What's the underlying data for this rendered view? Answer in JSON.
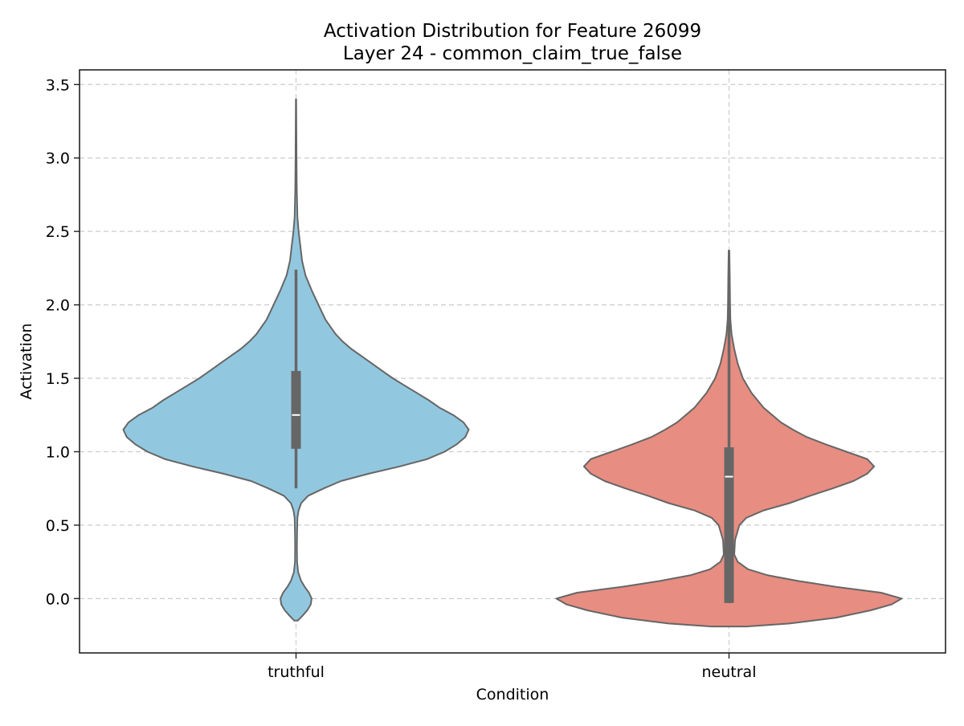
{
  "chart_data": {
    "type": "violin",
    "title": "Activation Distribution for Feature 26099",
    "subtitle": "Layer 24 - common_claim_true_false",
    "xlabel": "Condition",
    "ylabel": "Activation",
    "categories": [
      "truthful",
      "neutral"
    ],
    "ylim": [
      -0.37,
      3.6
    ],
    "yticks": [
      0.0,
      0.5,
      1.0,
      1.5,
      2.0,
      2.5,
      3.0,
      3.5
    ],
    "ytick_labels": [
      "0.0",
      "0.5",
      "1.0",
      "1.5",
      "2.0",
      "2.5",
      "3.0",
      "3.5"
    ],
    "grid": true,
    "legend": "none",
    "colors": {
      "truthful": "#92c8df",
      "neutral": "#e88d81",
      "outline": "#666666",
      "box": "#666666",
      "median": "#ffffff",
      "grid": "#cccccc"
    },
    "series": [
      {
        "category": "truthful",
        "median": 1.25,
        "q1": 1.02,
        "q3": 1.55,
        "whisker_low": 0.75,
        "whisker_high": 2.24,
        "min": -0.15,
        "max": 3.4,
        "density": [
          [
            -0.15,
            0.01
          ],
          [
            -0.12,
            0.035
          ],
          [
            -0.08,
            0.065
          ],
          [
            -0.04,
            0.085
          ],
          [
            0.0,
            0.09
          ],
          [
            0.04,
            0.075
          ],
          [
            0.08,
            0.05
          ],
          [
            0.12,
            0.03
          ],
          [
            0.18,
            0.012
          ],
          [
            0.25,
            0.006
          ],
          [
            0.35,
            0.005
          ],
          [
            0.45,
            0.006
          ],
          [
            0.55,
            0.008
          ],
          [
            0.6,
            0.015
          ],
          [
            0.65,
            0.03
          ],
          [
            0.7,
            0.07
          ],
          [
            0.75,
            0.16
          ],
          [
            0.8,
            0.26
          ],
          [
            0.85,
            0.42
          ],
          [
            0.9,
            0.6
          ],
          [
            0.95,
            0.76
          ],
          [
            1.0,
            0.86
          ],
          [
            1.05,
            0.93
          ],
          [
            1.1,
            0.98
          ],
          [
            1.15,
            1.0
          ],
          [
            1.2,
            0.97
          ],
          [
            1.25,
            0.91
          ],
          [
            1.3,
            0.83
          ],
          [
            1.35,
            0.77
          ],
          [
            1.4,
            0.7
          ],
          [
            1.45,
            0.63
          ],
          [
            1.5,
            0.56
          ],
          [
            1.55,
            0.5
          ],
          [
            1.6,
            0.44
          ],
          [
            1.65,
            0.38
          ],
          [
            1.7,
            0.32
          ],
          [
            1.75,
            0.27
          ],
          [
            1.8,
            0.23
          ],
          [
            1.9,
            0.17
          ],
          [
            2.0,
            0.13
          ],
          [
            2.1,
            0.09
          ],
          [
            2.2,
            0.055
          ],
          [
            2.3,
            0.035
          ],
          [
            2.4,
            0.025
          ],
          [
            2.5,
            0.015
          ],
          [
            2.6,
            0.008
          ],
          [
            2.8,
            0.004
          ],
          [
            3.0,
            0.003
          ],
          [
            3.2,
            0.002
          ],
          [
            3.4,
            0.001
          ]
        ]
      },
      {
        "category": "neutral",
        "median": 0.83,
        "q1": -0.03,
        "q3": 1.03,
        "whisker_low": -0.03,
        "whisker_high": 2.2,
        "min": -0.19,
        "max": 2.37,
        "density": [
          [
            -0.19,
            0.1
          ],
          [
            -0.17,
            0.35
          ],
          [
            -0.13,
            0.62
          ],
          [
            -0.08,
            0.82
          ],
          [
            -0.04,
            0.94
          ],
          [
            0.0,
            1.0
          ],
          [
            0.04,
            0.88
          ],
          [
            0.08,
            0.62
          ],
          [
            0.12,
            0.4
          ],
          [
            0.16,
            0.22
          ],
          [
            0.2,
            0.11
          ],
          [
            0.25,
            0.05
          ],
          [
            0.3,
            0.03
          ],
          [
            0.4,
            0.035
          ],
          [
            0.5,
            0.06
          ],
          [
            0.55,
            0.1
          ],
          [
            0.6,
            0.2
          ],
          [
            0.65,
            0.35
          ],
          [
            0.7,
            0.47
          ],
          [
            0.75,
            0.6
          ],
          [
            0.8,
            0.72
          ],
          [
            0.85,
            0.8
          ],
          [
            0.9,
            0.84
          ],
          [
            0.95,
            0.8
          ],
          [
            1.0,
            0.68
          ],
          [
            1.05,
            0.56
          ],
          [
            1.1,
            0.45
          ],
          [
            1.15,
            0.37
          ],
          [
            1.2,
            0.3
          ],
          [
            1.3,
            0.2
          ],
          [
            1.4,
            0.13
          ],
          [
            1.5,
            0.08
          ],
          [
            1.6,
            0.05
          ],
          [
            1.7,
            0.03
          ],
          [
            1.8,
            0.015
          ],
          [
            1.9,
            0.008
          ],
          [
            2.0,
            0.006
          ],
          [
            2.2,
            0.004
          ],
          [
            2.37,
            0.002
          ]
        ]
      }
    ]
  }
}
